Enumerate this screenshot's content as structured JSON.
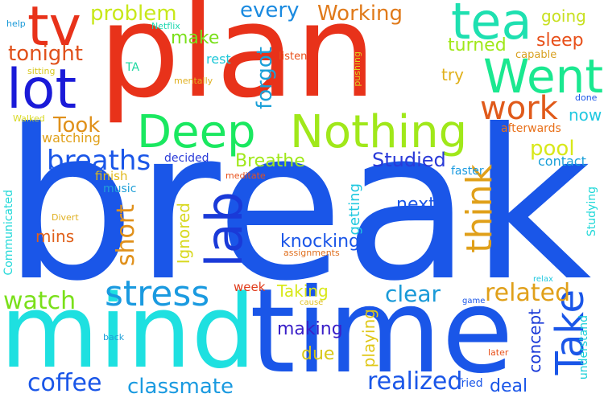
{
  "word_cloud": {
    "words": [
      {
        "text": "break",
        "color": "#1a56e8"
      },
      {
        "text": "plan",
        "color": "#e8321a"
      },
      {
        "text": "mind",
        "color": "#1ee0e0"
      },
      {
        "text": "time",
        "color": "#1a56e8"
      },
      {
        "text": "tea",
        "color": "#1ee0b0"
      },
      {
        "text": "tv",
        "color": "#e8321a"
      },
      {
        "text": "lot",
        "color": "#1a1ad8"
      },
      {
        "text": "Went",
        "color": "#1ae890"
      },
      {
        "text": "Deep",
        "color": "#1ae860"
      },
      {
        "text": "Nothing",
        "color": "#a0e81a"
      },
      {
        "text": "work",
        "color": "#e05a1a"
      },
      {
        "text": "lab",
        "color": "#1a3ad8"
      },
      {
        "text": "stress",
        "color": "#1a9ae0"
      },
      {
        "text": "Take",
        "color": "#1a56e8"
      },
      {
        "text": "think",
        "color": "#e0a01a"
      },
      {
        "text": "breaths",
        "color": "#1a56e8"
      },
      {
        "text": "watch",
        "color": "#7ae01a"
      },
      {
        "text": "problem",
        "color": "#c8e81a"
      },
      {
        "text": "tonight",
        "color": "#e0501a"
      },
      {
        "text": "every",
        "color": "#1a8ae0"
      },
      {
        "text": "Working",
        "color": "#e07a1a"
      },
      {
        "text": "going",
        "color": "#c8e020"
      },
      {
        "text": "sleep",
        "color": "#e8501a"
      },
      {
        "text": "forgot",
        "color": "#1aa0d8"
      },
      {
        "text": "make",
        "color": "#7ae01a"
      },
      {
        "text": "turned",
        "color": "#a0e81a"
      },
      {
        "text": "Took",
        "color": "#e0901a"
      },
      {
        "text": "pool",
        "color": "#d8e81a"
      },
      {
        "text": "now",
        "color": "#20c8e0"
      },
      {
        "text": "Breathe",
        "color": "#a0e81a"
      },
      {
        "text": "Studied",
        "color": "#2a3ad8"
      },
      {
        "text": "short",
        "color": "#e0901a"
      },
      {
        "text": "related",
        "color": "#e0a01a"
      },
      {
        "text": "clear",
        "color": "#1a9ad8"
      },
      {
        "text": "coffee",
        "color": "#1a56e8"
      },
      {
        "text": "classmate",
        "color": "#1a9ae0"
      },
      {
        "text": "realized",
        "color": "#1a56e8"
      },
      {
        "text": "deal",
        "color": "#1a56e8"
      },
      {
        "text": "concept",
        "color": "#1a3ad8"
      },
      {
        "text": "knocking",
        "color": "#1a56e8"
      },
      {
        "text": "making",
        "color": "#3a20c8"
      },
      {
        "text": "playing",
        "color": "#e0c81a"
      },
      {
        "text": "Taking",
        "color": "#d8e81a"
      },
      {
        "text": "next",
        "color": "#1a56e8"
      },
      {
        "text": "mins",
        "color": "#e0601a"
      },
      {
        "text": "getting",
        "color": "#20c8e0"
      },
      {
        "text": "Ignored",
        "color": "#d8d820"
      },
      {
        "text": "due",
        "color": "#d8c81a"
      },
      {
        "text": "try",
        "color": "#e0b01a"
      },
      {
        "text": "rest",
        "color": "#20c8d8"
      },
      {
        "text": "capable",
        "color": "#d8a020"
      },
      {
        "text": "listen",
        "color": "#e8501a"
      },
      {
        "text": "watching",
        "color": "#e0a01a"
      },
      {
        "text": "finish",
        "color": "#e0b81a"
      },
      {
        "text": "music",
        "color": "#20a0d8"
      },
      {
        "text": "decided",
        "color": "#2a3ad8"
      },
      {
        "text": "afterwards",
        "color": "#e8701a"
      },
      {
        "text": "contact",
        "color": "#1aa0d8"
      },
      {
        "text": "faster",
        "color": "#1a9ae0"
      },
      {
        "text": "Studying",
        "color": "#20d8d8"
      },
      {
        "text": "Communicated",
        "color": "#20d8d8"
      },
      {
        "text": "understand",
        "color": "#1ad0d8"
      },
      {
        "text": "Tried",
        "color": "#1a56e8"
      },
      {
        "text": "week",
        "color": "#e03a1a"
      },
      {
        "text": "TA",
        "color": "#1ad8a0"
      },
      {
        "text": "Netflix",
        "color": "#20d8b0"
      },
      {
        "text": "help",
        "color": "#1a9ad8"
      },
      {
        "text": "sitting",
        "color": "#d8c820"
      },
      {
        "text": "Walked",
        "color": "#d8d820"
      },
      {
        "text": "mentally",
        "color": "#e0b020"
      },
      {
        "text": "pushing",
        "color": "#e0d020"
      },
      {
        "text": "done",
        "color": "#1a56e8"
      },
      {
        "text": "meditate",
        "color": "#e8501a"
      },
      {
        "text": "Divert",
        "color": "#e0b020"
      },
      {
        "text": "assignments",
        "color": "#e07020"
      },
      {
        "text": "cause",
        "color": "#e0c020"
      },
      {
        "text": "game",
        "color": "#1a56e8"
      },
      {
        "text": "relax",
        "color": "#20c8e0"
      },
      {
        "text": "back",
        "color": "#20a0d8"
      },
      {
        "text": "later",
        "color": "#e8501a"
      }
    ]
  }
}
